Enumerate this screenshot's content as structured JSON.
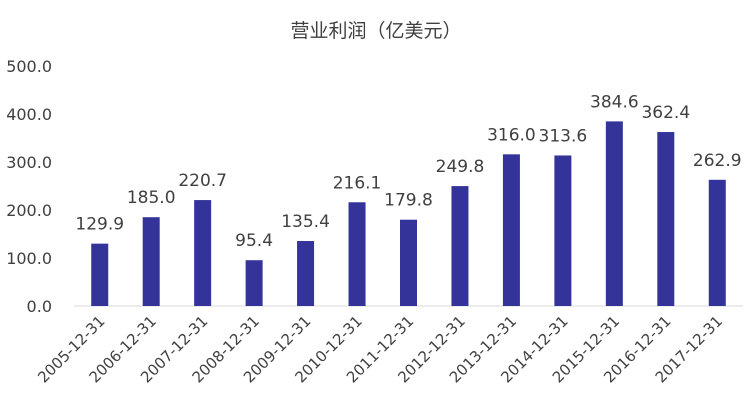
{
  "chart_data": {
    "type": "bar",
    "title": "营业利润（亿美元）",
    "xlabel": "",
    "ylabel": "",
    "categories": [
      "2005-12-31",
      "2006-12-31",
      "2007-12-31",
      "2008-12-31",
      "2009-12-31",
      "2010-12-31",
      "2011-12-31",
      "2012-12-31",
      "2013-12-31",
      "2014-12-31",
      "2015-12-31",
      "2016-12-31",
      "2017-12-31"
    ],
    "values": [
      129.9,
      185.0,
      220.7,
      95.4,
      135.4,
      216.1,
      179.8,
      249.8,
      316.0,
      313.6,
      384.6,
      362.4,
      262.9
    ],
    "value_labels": [
      "129.9",
      "185.0",
      "220.7",
      "95.4",
      "135.4",
      "216.1",
      "179.8",
      "249.8",
      "316.0",
      "313.6",
      "384.6",
      "362.4",
      "262.9"
    ],
    "yticks": [
      "0.0",
      "100.0",
      "200.0",
      "300.0",
      "400.0",
      "500.0"
    ],
    "ylim": [
      0,
      500
    ],
    "grid": false,
    "legend": "none",
    "bar_color": "#333399"
  }
}
